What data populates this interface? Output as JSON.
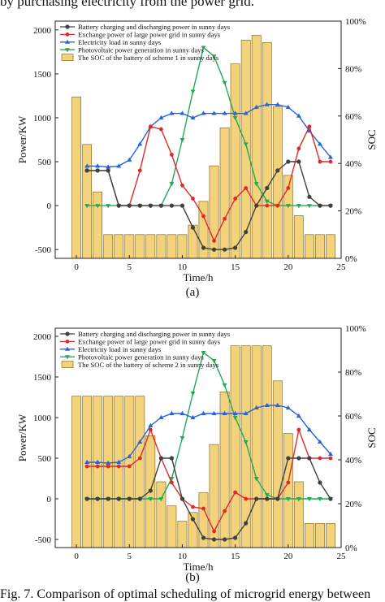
{
  "top_caption": "by purchasing electricity from the power grid.",
  "figure_caption": "Fig. 7.  Comparison of optimal scheduling of microgrid energy between",
  "colors": {
    "battery": "#404040",
    "grid": "#e02a2a",
    "load": "#2a63d6",
    "pv": "#22aa55",
    "soc_fill": "#f2d27a",
    "soc_stroke": "#7a5c10"
  },
  "chart_data": [
    {
      "type": "bar+line",
      "panel_label": "(a)",
      "xlabel": "Time/h",
      "ylabel": "Power/KW",
      "y2label": "SOC",
      "xlim": [
        -2,
        25
      ],
      "ylim": [
        -600,
        2100
      ],
      "y2lim": [
        0,
        100
      ],
      "xticks": [
        0,
        5,
        10,
        15,
        20,
        25
      ],
      "yticks": [
        -500,
        0,
        500,
        1000,
        1500,
        2000
      ],
      "y2ticks": [
        0,
        20,
        40,
        60,
        80,
        100
      ],
      "y2ticklabels": [
        "0%",
        "20%",
        "40%",
        "60%",
        "80%",
        "100%"
      ],
      "legend_position": "top-left",
      "legend": [
        "Battery charging and discharging power in sunny days",
        "Exchange power of large power grid in sunny days",
        "Electricity load in sunny days",
        "Photovoltaic power generation in sunny days",
        "The SOC of the battery of scheme 1 in sunny days"
      ],
      "x": [
        1,
        2,
        3,
        4,
        5,
        6,
        7,
        8,
        9,
        10,
        11,
        12,
        13,
        14,
        15,
        16,
        17,
        18,
        19,
        20,
        21,
        22,
        23,
        24
      ],
      "series": [
        {
          "name": "Battery charging and discharging power in sunny days",
          "key": "battery",
          "values": [
            400,
            400,
            400,
            0,
            0,
            0,
            0,
            0,
            0,
            0,
            -250,
            -480,
            -500,
            -500,
            -480,
            -300,
            0,
            200,
            400,
            500,
            500,
            100,
            0,
            0
          ]
        },
        {
          "name": "Exchange power of large power grid in sunny days",
          "key": "grid",
          "values": [
            400,
            400,
            400,
            0,
            0,
            400,
            900,
            870,
            580,
            230,
            80,
            -120,
            -400,
            -150,
            80,
            200,
            0,
            0,
            0,
            200,
            650,
            900,
            500,
            500
          ]
        },
        {
          "name": "Electricity load in sunny days",
          "key": "load",
          "values": [
            450,
            450,
            440,
            450,
            520,
            700,
            900,
            1000,
            1050,
            1050,
            1000,
            1050,
            1050,
            1050,
            1050,
            1050,
            1120,
            1150,
            1150,
            1120,
            1020,
            850,
            700,
            550
          ]
        },
        {
          "name": "Photovoltaic power generation in sunny days",
          "key": "pv",
          "values": [
            0,
            0,
            0,
            0,
            0,
            0,
            0,
            0,
            250,
            750,
            1300,
            1800,
            1700,
            1400,
            1000,
            700,
            250,
            50,
            0,
            0,
            0,
            0,
            0,
            0
          ]
        }
      ],
      "soc_name": "The SOC of the battery of scheme 1 in sunny days",
      "soc_x": [
        0,
        1,
        2,
        3,
        4,
        5,
        6,
        7,
        8,
        9,
        10,
        11,
        12,
        13,
        14,
        15,
        16,
        17,
        18,
        19,
        20,
        21,
        22,
        23,
        24
      ],
      "soc": [
        68,
        48,
        28,
        10,
        10,
        10,
        10,
        10,
        10,
        10,
        10,
        14,
        24,
        39,
        55,
        82,
        92,
        94,
        91,
        64,
        35,
        18,
        10,
        10,
        10
      ]
    },
    {
      "type": "bar+line",
      "panel_label": "(b)",
      "xlabel": "Time/h",
      "ylabel": "Power/KW",
      "y2label": "SOC",
      "xlim": [
        -2,
        25
      ],
      "ylim": [
        -600,
        2100
      ],
      "y2lim": [
        0,
        100
      ],
      "xticks": [
        0,
        5,
        10,
        15,
        20,
        25
      ],
      "yticks": [
        -500,
        0,
        500,
        1000,
        1500,
        2000
      ],
      "y2ticks": [
        0,
        20,
        40,
        60,
        80,
        100
      ],
      "y2ticklabels": [
        "0%",
        "20%",
        "40%",
        "60%",
        "80%",
        "100%"
      ],
      "legend_position": "top-left",
      "legend": [
        "Battery charging and discharging power in sunny days",
        "Exchange power of large power grid in sunny days",
        "Electricity load in sunny days",
        "Photovoltaic power generation in sunny days",
        "The SOC of the battery of scheme 2 in sunny days"
      ],
      "x": [
        1,
        2,
        3,
        4,
        5,
        6,
        7,
        8,
        9,
        10,
        11,
        12,
        13,
        14,
        15,
        16,
        17,
        18,
        19,
        20,
        21,
        22,
        23,
        24
      ],
      "series": [
        {
          "name": "Battery charging and discharging power in sunny days",
          "key": "battery",
          "values": [
            0,
            0,
            0,
            0,
            0,
            0,
            100,
            500,
            500,
            0,
            -250,
            -480,
            -500,
            -500,
            -480,
            -300,
            0,
            0,
            0,
            500,
            500,
            500,
            200,
            0
          ]
        },
        {
          "name": "Exchange power of large power grid in sunny days",
          "key": "grid",
          "values": [
            400,
            400,
            400,
            400,
            400,
            500,
            850,
            500,
            200,
            0,
            -100,
            -120,
            -400,
            -150,
            80,
            0,
            0,
            0,
            0,
            200,
            850,
            500,
            500,
            500
          ]
        },
        {
          "name": "Electricity load in sunny days",
          "key": "load",
          "values": [
            450,
            450,
            440,
            450,
            520,
            700,
            900,
            1000,
            1050,
            1050,
            1000,
            1050,
            1050,
            1050,
            1050,
            1050,
            1120,
            1150,
            1150,
            1120,
            1020,
            850,
            700,
            550
          ]
        },
        {
          "name": "Photovoltaic power generation in sunny days",
          "key": "pv",
          "values": [
            0,
            0,
            0,
            0,
            0,
            0,
            0,
            0,
            250,
            750,
            1300,
            1800,
            1700,
            1400,
            1000,
            700,
            250,
            50,
            0,
            0,
            0,
            0,
            0,
            0
          ]
        }
      ],
      "soc_name": "The SOC of the battery of scheme 2 in sunny days",
      "soc_x": [
        0,
        1,
        2,
        3,
        4,
        5,
        6,
        7,
        8,
        9,
        10,
        11,
        12,
        13,
        14,
        15,
        16,
        17,
        18,
        19,
        20,
        21,
        22,
        23,
        24
      ],
      "soc": [
        69,
        69,
        69,
        69,
        69,
        69,
        69,
        51,
        30,
        19,
        12,
        16,
        25,
        47,
        71,
        92,
        92,
        92,
        92,
        76,
        52,
        30,
        11,
        11,
        11
      ]
    }
  ]
}
